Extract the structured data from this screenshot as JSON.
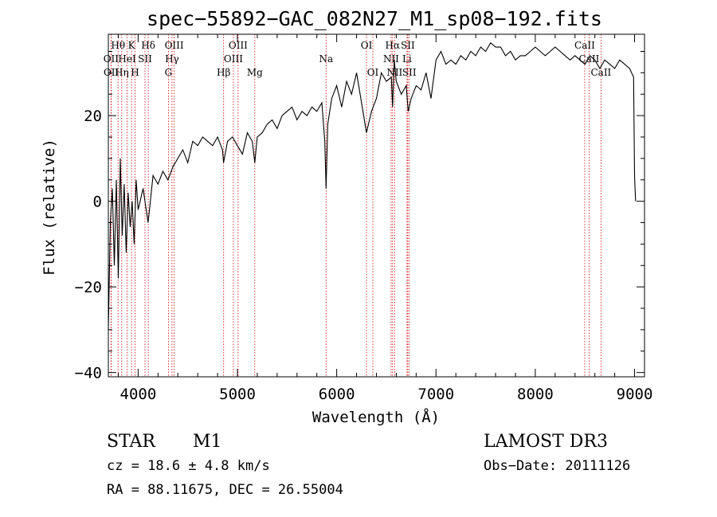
{
  "chart_data": {
    "type": "line",
    "title": "spec−55892−GAC_082N27_M1_sp08−192.fits",
    "xlabel": "Wavelength (Å)",
    "ylabel": "Flux (relative)",
    "xlim": [
      3700,
      9100
    ],
    "ylim": [
      -41,
      39
    ],
    "xticks": [
      4000,
      5000,
      6000,
      7000,
      8000,
      9000
    ],
    "xtick_labels": [
      "4000",
      "5000",
      "6000",
      "7000",
      "8000",
      "9000"
    ],
    "yticks": [
      -40,
      -20,
      0,
      20
    ],
    "ytick_labels": [
      "−40",
      "−20",
      "0",
      "20"
    ],
    "series": [
      {
        "name": "flux",
        "x": [
          3700,
          3720,
          3740,
          3760,
          3780,
          3800,
          3820,
          3840,
          3860,
          3880,
          3900,
          3920,
          3940,
          3960,
          3980,
          4000,
          4050,
          4100,
          4150,
          4200,
          4250,
          4300,
          4350,
          4400,
          4450,
          4500,
          4550,
          4600,
          4650,
          4700,
          4750,
          4800,
          4850,
          4860,
          4900,
          4950,
          5000,
          5050,
          5100,
          5150,
          5175,
          5200,
          5250,
          5300,
          5350,
          5400,
          5450,
          5500,
          5550,
          5600,
          5650,
          5700,
          5750,
          5800,
          5850,
          5880,
          5893,
          5910,
          5950,
          6000,
          6050,
          6100,
          6150,
          6200,
          6250,
          6300,
          6350,
          6400,
          6450,
          6500,
          6550,
          6563,
          6580,
          6600,
          6650,
          6700,
          6720,
          6750,
          6800,
          6850,
          6900,
          6950,
          7000,
          7050,
          7100,
          7150,
          7200,
          7250,
          7300,
          7350,
          7400,
          7450,
          7500,
          7550,
          7600,
          7650,
          7700,
          7750,
          7800,
          7850,
          7900,
          7950,
          8000,
          8050,
          8100,
          8150,
          8200,
          8250,
          8300,
          8350,
          8400,
          8450,
          8500,
          8550,
          8600,
          8650,
          8700,
          8750,
          8800,
          8850,
          8900,
          8950,
          8990,
          9000,
          9010
        ],
        "y": [
          -30,
          -5,
          3,
          -15,
          5,
          -18,
          10,
          -8,
          4,
          -12,
          2,
          -6,
          0,
          -10,
          5,
          -2,
          3,
          -5,
          6,
          4,
          7,
          5,
          8,
          10,
          12,
          9,
          14,
          13,
          15,
          14,
          13,
          15,
          12,
          9,
          14,
          15,
          13,
          11,
          16,
          14,
          9,
          15,
          16,
          18,
          19,
          17,
          20,
          21,
          22,
          19,
          21,
          20,
          22,
          21,
          23,
          14,
          3,
          18,
          24,
          27,
          22,
          28,
          25,
          30,
          23,
          16,
          21,
          24,
          30,
          28,
          29,
          22,
          33,
          28,
          25,
          27,
          21,
          24,
          27,
          26,
          30,
          24,
          33,
          35,
          32,
          33,
          32,
          34,
          33,
          35,
          34,
          36,
          35,
          37,
          36,
          36,
          34,
          35,
          33,
          34,
          34,
          35,
          36,
          35,
          34,
          35,
          36,
          35,
          34,
          33,
          34,
          33,
          32,
          34,
          33,
          31,
          33,
          32,
          31,
          33,
          32,
          31,
          29,
          6,
          0
        ]
      }
    ],
    "emission_lines": [
      {
        "label": "Hθ",
        "wl": 3798,
        "row": 0
      },
      {
        "label": "OII",
        "wl": 3727,
        "row": 1
      },
      {
        "label": "OII",
        "wl": 3729,
        "row": 2
      },
      {
        "label": "Hη",
        "wl": 3835,
        "row": 2
      },
      {
        "label": "HeI",
        "wl": 3889,
        "row": 1
      },
      {
        "label": "K",
        "wl": 3934,
        "row": 0
      },
      {
        "label": "H",
        "wl": 3969,
        "row": 2
      },
      {
        "label": "SII",
        "wl": 4069,
        "row": 1
      },
      {
        "label": "Hδ",
        "wl": 4102,
        "row": 0
      },
      {
        "label": "G",
        "wl": 4305,
        "row": 2
      },
      {
        "label": "Hγ",
        "wl": 4341,
        "row": 1
      },
      {
        "label": "OIII",
        "wl": 4363,
        "row": 0
      },
      {
        "label": "Hβ",
        "wl": 4861,
        "row": 2
      },
      {
        "label": "OIII",
        "wl": 4959,
        "row": 1
      },
      {
        "label": "OIII",
        "wl": 5007,
        "row": 0
      },
      {
        "label": "Mg",
        "wl": 5175,
        "row": 2
      },
      {
        "label": "Na",
        "wl": 5893,
        "row": 1
      },
      {
        "label": "OI",
        "wl": 6300,
        "row": 0
      },
      {
        "label": "OI",
        "wl": 6364,
        "row": 2
      },
      {
        "label": "NII",
        "wl": 6548,
        "row": 1
      },
      {
        "label": "Hα",
        "wl": 6563,
        "row": 0
      },
      {
        "label": "NII",
        "wl": 6583,
        "row": 2
      },
      {
        "label": "Li",
        "wl": 6708,
        "row": 1
      },
      {
        "label": "SII",
        "wl": 6716,
        "row": 0
      },
      {
        "label": "SII",
        "wl": 6731,
        "row": 2
      },
      {
        "label": "CaII",
        "wl": 8498,
        "row": 0
      },
      {
        "label": "CaII",
        "wl": 8542,
        "row": 1
      },
      {
        "label": "CaII",
        "wl": 8662,
        "row": 2
      }
    ],
    "line_color": "#000000",
    "marker_color": "#cc0000"
  },
  "info": {
    "class": "STAR",
    "subclass": "M1",
    "survey": "LAMOST DR3",
    "cz": "cz = 18.6 ± 4.8 km/s",
    "obs_date": "Obs−Date: 20111126",
    "coords": "RA =  88.11675, DEC =  26.55004"
  }
}
